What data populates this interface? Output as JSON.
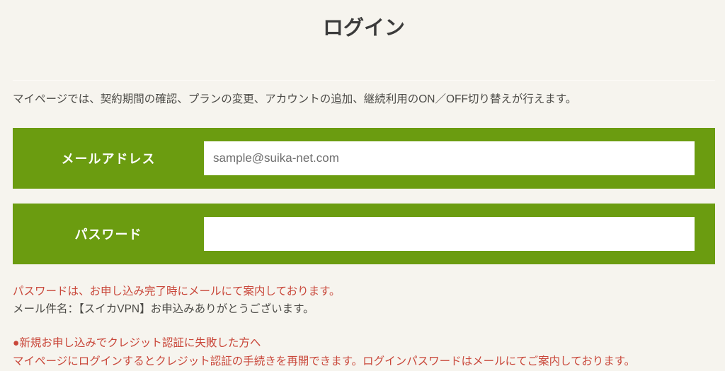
{
  "page": {
    "title": "ログイン",
    "intro": "マイページでは、契約期間の確認、プランの変更、アカウントの追加、継続利用のON／OFF切り替えが行えます。"
  },
  "form": {
    "email": {
      "label": "メールアドレス",
      "value": "sample@suika-net.com"
    },
    "password": {
      "label": "パスワード",
      "value": ""
    }
  },
  "notes": {
    "password_notice": "パスワードは、お申し込み完了時にメールにて案内しております。",
    "mail_subject": "メール件名：【スイカVPN】お申込みありがとうございます。",
    "credit_heading": "●新規お申し込みでクレジット認証に失敗した方へ",
    "credit_body": "マイページにログインするとクレジット認証の手続きを再開できます。ログインパスワードはメールにてご案内しております。"
  },
  "colors": {
    "accent_green": "#6b9c10",
    "alert_red": "#c9473a",
    "background": "#f6f4ee",
    "title_text": "#3b3b3b",
    "body_text": "#4c4b47"
  }
}
